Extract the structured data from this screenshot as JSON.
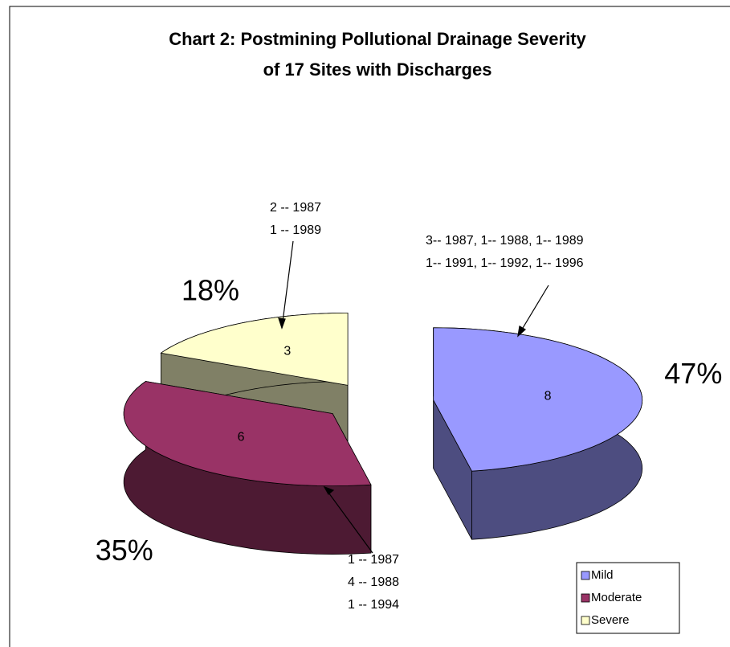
{
  "chart_data": {
    "type": "pie3d",
    "title": [
      "Chart 2:  Postmining Pollutional Drainage Severity",
      "of 17 Sites with Discharges"
    ],
    "categories": [
      "Mild",
      "Moderate",
      "Severe"
    ],
    "values": [
      8,
      6,
      3
    ],
    "percent_values": [
      47,
      35,
      18
    ],
    "percent_labels": [
      "47%",
      "35%",
      "18%"
    ],
    "colors": [
      "#9999ff",
      "#993366",
      "#ffffcc"
    ],
    "side_colors": [
      "#4d4d80",
      "#4d1a33",
      "#808066"
    ],
    "annotations": [
      [
        "3-- 1987,  1-- 1988,  1-- 1989",
        "1-- 1991,  1-- 1992,  1-- 1996"
      ],
      [
        "1 -- 1987",
        "4 -- 1988",
        "1 -- 1994"
      ],
      [
        "2 -- 1987",
        "1 -- 1989"
      ]
    ],
    "legend": "bottom-right"
  }
}
